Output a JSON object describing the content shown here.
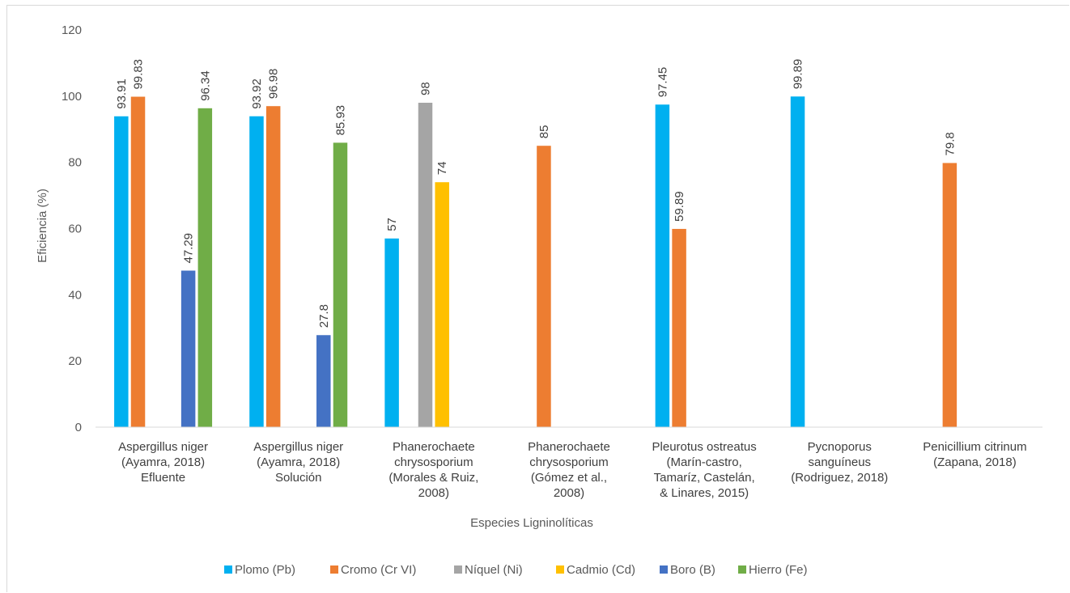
{
  "chart_data": {
    "type": "bar",
    "title": "",
    "xlabel": "Especies Ligninolíticas",
    "ylabel": "Eficiencia (%)",
    "ylim": [
      0,
      120
    ],
    "yticks": [
      0,
      20,
      40,
      60,
      80,
      100,
      120
    ],
    "grid": false,
    "legend_position": "bottom",
    "categories": [
      [
        "Aspergillus niger",
        "(Ayamra, 2018)",
        "Efluente"
      ],
      [
        "Aspergillus niger",
        "(Ayamra, 2018)",
        "Solución"
      ],
      [
        "Phanerochaete",
        "chrysosporium",
        "(Morales & Ruiz,",
        "2008)"
      ],
      [
        "Phanerochaete",
        "chrysosporium",
        "(Gómez et al.,",
        "2008)"
      ],
      [
        "Pleurotus ostreatus",
        "(Marín-castro,",
        "Tamaríz, Castelán,",
        "& Linares, 2015)"
      ],
      [
        "Pycnoporus",
        "sanguíneus",
        "(Rodriguez, 2018)"
      ],
      [
        "Penicillium citrinum",
        "(Zapana, 2018)"
      ]
    ],
    "series": [
      {
        "name": "Plomo (Pb)",
        "color": "#00b0f0",
        "values": [
          93.91,
          93.92,
          57,
          null,
          97.45,
          99.89,
          null
        ]
      },
      {
        "name": "Cromo (Cr VI)",
        "color": "#ed7d31",
        "values": [
          99.83,
          96.98,
          null,
          85,
          59.89,
          null,
          79.8
        ]
      },
      {
        "name": "Níquel (Ni)",
        "color": "#a5a5a5",
        "values": [
          null,
          null,
          98,
          null,
          null,
          null,
          null
        ]
      },
      {
        "name": "Cadmio (Cd)",
        "color": "#ffc000",
        "values": [
          null,
          null,
          74,
          null,
          null,
          null,
          null
        ]
      },
      {
        "name": "Boro (B)",
        "color": "#4472c4",
        "values": [
          47.29,
          27.8,
          null,
          null,
          null,
          null,
          null
        ]
      },
      {
        "name": "Hierro (Fe)",
        "color": "#70ad47",
        "values": [
          96.34,
          85.93,
          null,
          null,
          null,
          null,
          null
        ]
      }
    ],
    "data_labels": [
      [
        "93.91",
        "93.92",
        "57",
        null,
        "97.45",
        "99.89",
        null
      ],
      [
        "99.83",
        "96.98",
        null,
        "85",
        "59.89",
        null,
        "79.8"
      ],
      [
        null,
        null,
        "98",
        null,
        null,
        null,
        null
      ],
      [
        null,
        null,
        "74",
        null,
        null,
        null,
        null
      ],
      [
        "47.29",
        "27.8",
        null,
        null,
        null,
        null,
        null
      ],
      [
        "96.34",
        "85.93",
        null,
        null,
        null,
        null,
        null
      ]
    ]
  }
}
